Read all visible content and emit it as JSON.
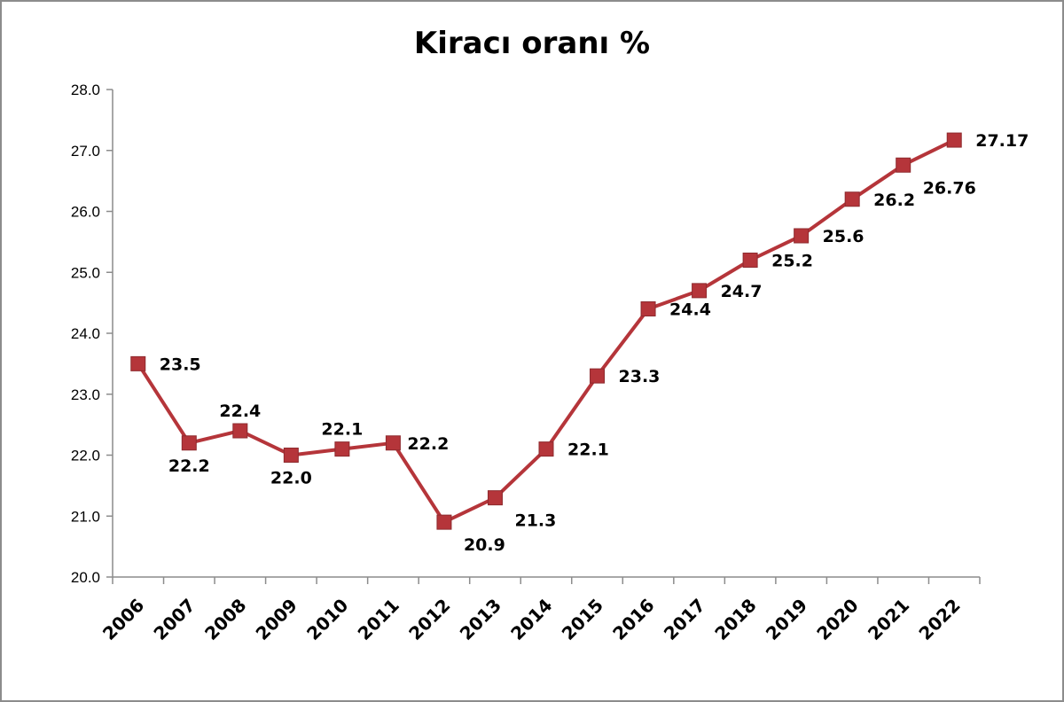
{
  "chart_data": {
    "type": "line",
    "title": "Kiracı oranı %",
    "xlabel": "",
    "ylabel": "",
    "categories": [
      "2006",
      "2007",
      "2008",
      "2009",
      "2010",
      "2011",
      "2012",
      "2013",
      "2014",
      "2015",
      "2016",
      "2017",
      "2018",
      "2019",
      "2020",
      "2021",
      "2022"
    ],
    "series": [
      {
        "name": "Kiracı oranı %",
        "values": [
          23.5,
          22.2,
          22.4,
          22.0,
          22.1,
          22.2,
          20.9,
          21.3,
          22.1,
          23.3,
          24.4,
          24.7,
          25.2,
          25.6,
          26.2,
          26.76,
          27.17
        ],
        "value_labels": [
          "23.5",
          "22.2",
          "22.4",
          "22.0",
          "22.1",
          "22.2",
          "20.9",
          "21.3",
          "22.1",
          "23.3",
          "24.4",
          "24.7",
          "25.2",
          "25.6",
          "26.2",
          "26.76",
          "27.17"
        ],
        "color": "#b5353a",
        "marker": "square"
      }
    ],
    "yticks": [
      "20.0",
      "21.0",
      "22.0",
      "23.0",
      "24.0",
      "25.0",
      "26.0",
      "27.0",
      "28.0"
    ],
    "ylim": [
      20,
      28
    ],
    "grid": false,
    "legend": "none"
  }
}
